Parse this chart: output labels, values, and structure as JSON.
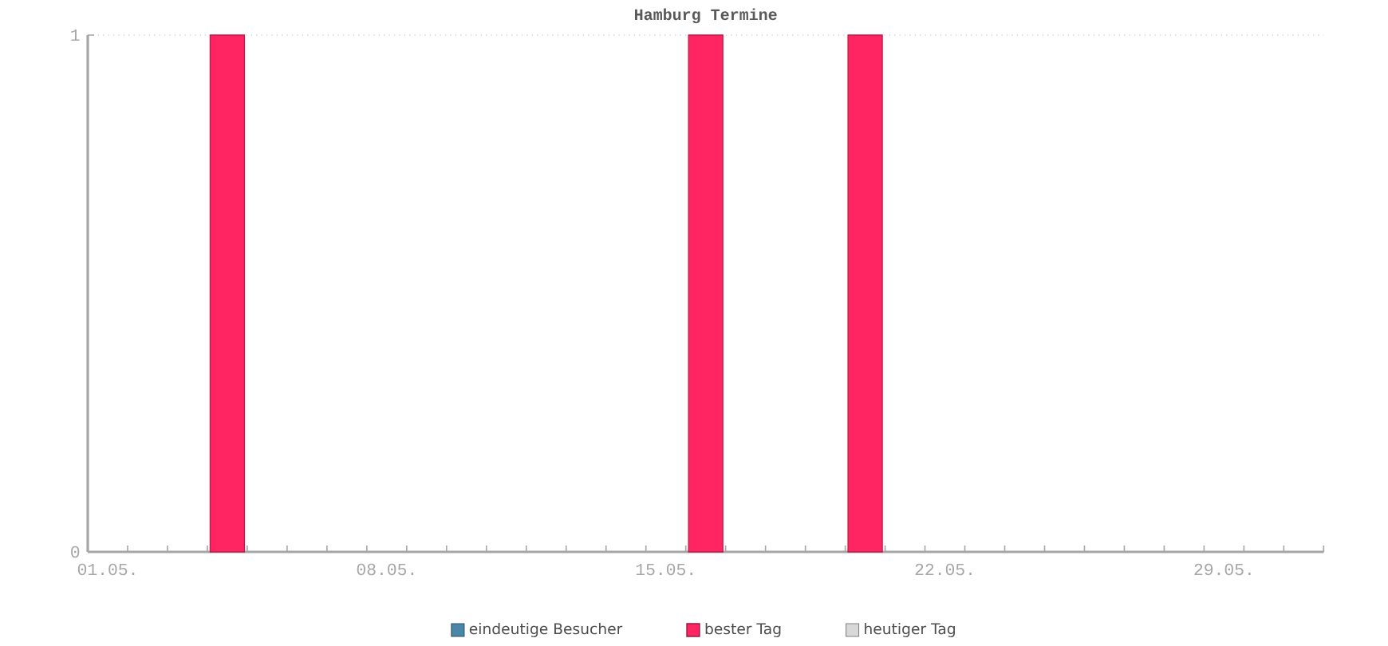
{
  "chart_data": {
    "type": "bar",
    "title": "Hamburg Termine",
    "categories": [
      "01.05.",
      null,
      null,
      null,
      null,
      null,
      null,
      "08.05.",
      null,
      null,
      null,
      null,
      null,
      null,
      "15.05.",
      null,
      null,
      null,
      null,
      null,
      null,
      "22.05.",
      null,
      null,
      null,
      null,
      null,
      null,
      "29.05.",
      null,
      null
    ],
    "series": [
      {
        "name": "eindeutige Besucher",
        "color": "#4a86a8",
        "values": [
          null,
          null,
          null,
          null,
          null,
          null,
          null,
          null,
          null,
          null,
          null,
          null,
          null,
          null,
          null,
          null,
          null,
          null,
          null,
          null,
          null,
          null,
          null,
          null,
          null,
          null,
          null,
          null,
          null,
          null,
          null
        ]
      },
      {
        "name": "bester Tag",
        "color": "#ff2462",
        "values": [
          null,
          null,
          null,
          1,
          null,
          null,
          null,
          null,
          null,
          null,
          null,
          null,
          null,
          null,
          null,
          1,
          null,
          null,
          null,
          1,
          null,
          null,
          null,
          null,
          null,
          null,
          null,
          null,
          null,
          null,
          null
        ]
      },
      {
        "name": "heutiger Tag",
        "color": "#d8d8d8",
        "values": [
          null,
          null,
          null,
          null,
          null,
          null,
          null,
          null,
          null,
          null,
          null,
          null,
          null,
          null,
          null,
          null,
          null,
          null,
          null,
          null,
          null,
          null,
          null,
          null,
          null,
          null,
          null,
          null,
          null,
          null,
          null
        ]
      }
    ],
    "ylim": [
      0,
      1
    ],
    "yticks": [
      0,
      1
    ],
    "grid": "y",
    "legend": "bottom"
  }
}
